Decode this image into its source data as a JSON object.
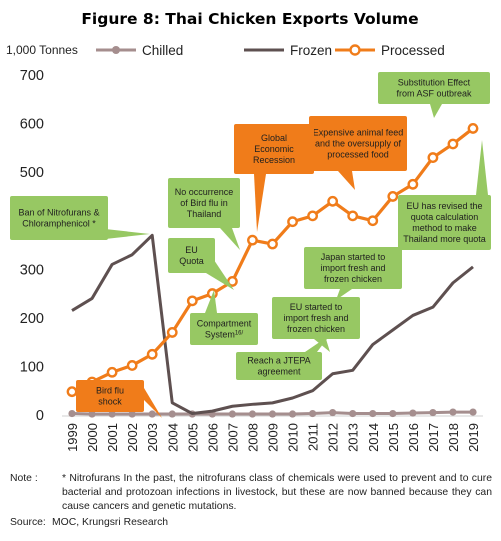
{
  "chart_data": {
    "type": "line",
    "title": "Figure 8: Thai Chicken Exports Volume",
    "ylabel": "1,000 Tonnes",
    "ylim": [
      0,
      700
    ],
    "yticks": [
      "0",
      "100",
      "200",
      "300",
      "400",
      "500",
      "600",
      "700"
    ],
    "x": [
      "1999",
      "2000",
      "2001",
      "2002",
      "2003",
      "2004",
      "2005",
      "2006",
      "2007",
      "2008",
      "2009",
      "2010",
      "2011",
      "2012",
      "2013",
      "2014",
      "2015",
      "2016",
      "2017",
      "2018",
      "2019"
    ],
    "grid": false,
    "legend": "top",
    "series": [
      {
        "name": "Chilled",
        "color": "#a58e8e",
        "marker": "circle-filled",
        "values": [
          3,
          2,
          2,
          2,
          2,
          2,
          2,
          2,
          2,
          2,
          2,
          2,
          3,
          5,
          3,
          3,
          3,
          4,
          5,
          6,
          6
        ]
      },
      {
        "name": "Frozen",
        "color": "#5e5050",
        "marker": "none",
        "values": [
          215,
          240,
          310,
          330,
          370,
          25,
          3,
          8,
          18,
          22,
          25,
          35,
          50,
          85,
          92,
          145,
          175,
          205,
          222,
          272,
          305
        ]
      },
      {
        "name": "Processed",
        "color": "#f07c1a",
        "marker": "circle-open",
        "values": [
          48,
          68,
          88,
          102,
          125,
          170,
          235,
          250,
          275,
          360,
          352,
          398,
          410,
          440,
          410,
          400,
          450,
          475,
          530,
          558,
          590
        ]
      }
    ],
    "annotations": [
      {
        "id": "substitution",
        "text": "Substitution Effect from ASF outbreak",
        "style": "green"
      },
      {
        "id": "expensive",
        "text": "Expensive animal feed and the oversupply of processed food",
        "style": "orange"
      },
      {
        "id": "global",
        "text": "Global Economic Recession",
        "style": "orange"
      },
      {
        "id": "no-bird-flu",
        "text": "No occurrence of Bird flu in Thailand",
        "style": "green"
      },
      {
        "id": "nitrofurans",
        "text": "Ban of Nitrofurans & Chloramphenicol *",
        "style": "green"
      },
      {
        "id": "eu-quota",
        "text": "EU Quota",
        "style": "green"
      },
      {
        "id": "eu-revised",
        "text": "EU has revised the quota calculation method to make Thailand more quota",
        "style": "green"
      },
      {
        "id": "japan",
        "text": "Japan started to import fresh and frozen chicken",
        "style": "green"
      },
      {
        "id": "eu-started",
        "text": "EU started to import fresh and frozen chicken",
        "style": "green"
      },
      {
        "id": "compartment",
        "text": "Compartment System",
        "sup": "16/",
        "style": "green"
      },
      {
        "id": "jtepa",
        "text": "Reach a JTEPA agreement",
        "style": "green"
      },
      {
        "id": "bird-flu",
        "text": "Bird flu shock",
        "style": "orange"
      }
    ]
  },
  "note": {
    "label": "Note :",
    "text": "* Nitrofurans In the past, the nitrofurans class of chemicals were used to prevent and to cure bacterial and protozoan infections in livestock, but these are now banned because they can cause cancers and genetic mutations."
  },
  "source": {
    "label": "Source:",
    "text": "MOC, Krungsri Research"
  }
}
